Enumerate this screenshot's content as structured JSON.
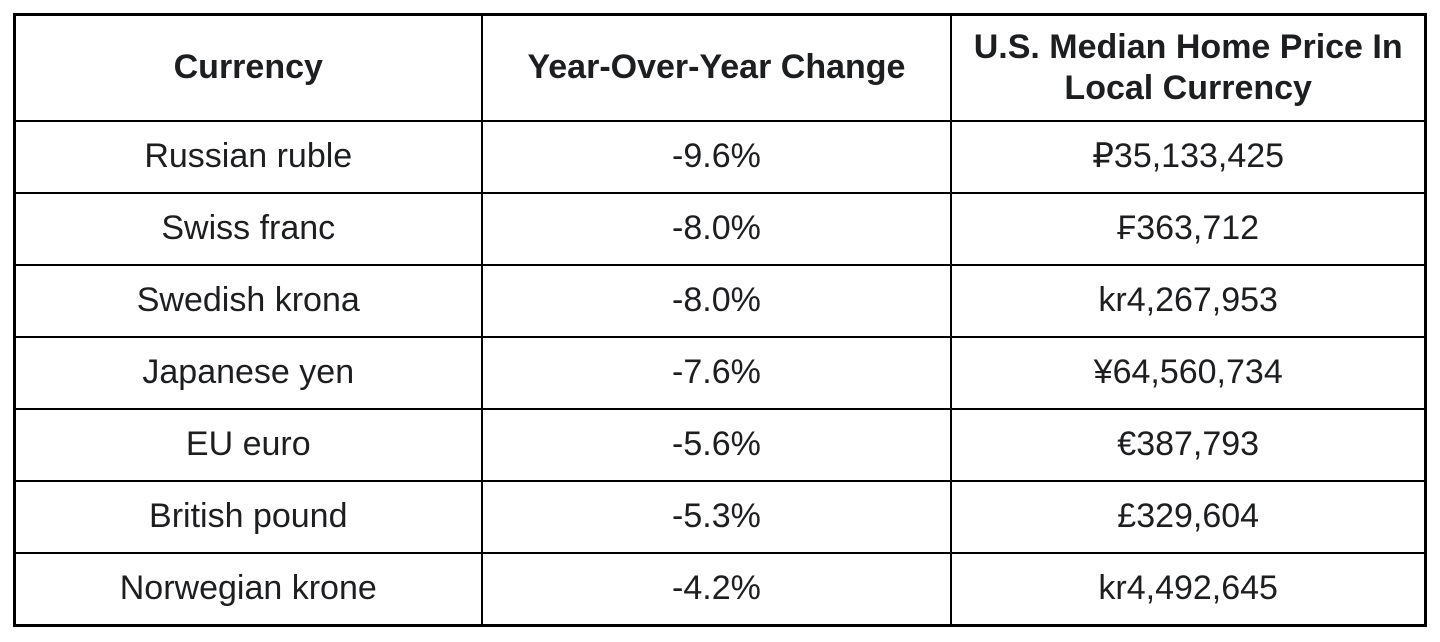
{
  "chart_data": {
    "type": "table",
    "columns": [
      "Currency",
      "Year-Over-Year Change",
      "U.S. Median Home Price In Local Currency"
    ],
    "rows": [
      [
        "Russian ruble",
        "-9.6%",
        "₽35,133,425"
      ],
      [
        "Swiss franc",
        "-8.0%",
        "₣363,712"
      ],
      [
        "Swedish krona",
        "-8.0%",
        "kr4,267,953"
      ],
      [
        "Japanese yen",
        "-7.6%",
        "¥64,560,734"
      ],
      [
        "EU euro",
        "-5.6%",
        "€387,793"
      ],
      [
        "British pound",
        "-5.3%",
        "£329,604"
      ],
      [
        "Norwegian krone",
        "-4.2%",
        "kr4,492,645"
      ]
    ],
    "layout": {
      "grid": "on",
      "text_align": "center"
    },
    "colors": {
      "border": "#000000",
      "text": "#1d1e20",
      "background": "#ffffff"
    }
  }
}
